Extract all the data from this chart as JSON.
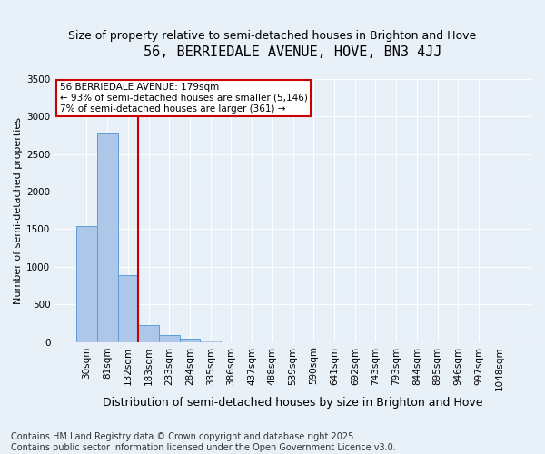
{
  "title": "56, BERRIEDALE AVENUE, HOVE, BN3 4JJ",
  "subtitle": "Size of property relative to semi-detached houses in Brighton and Hove",
  "xlabel": "Distribution of semi-detached houses by size in Brighton and Hove",
  "ylabel": "Number of semi-detached properties",
  "categories": [
    "30sqm",
    "81sqm",
    "132sqm",
    "183sqm",
    "233sqm",
    "284sqm",
    "335sqm",
    "386sqm",
    "437sqm",
    "488sqm",
    "539sqm",
    "590sqm",
    "641sqm",
    "692sqm",
    "743sqm",
    "793sqm",
    "844sqm",
    "895sqm",
    "946sqm",
    "997sqm",
    "1048sqm"
  ],
  "bar_values": [
    1540,
    2780,
    890,
    220,
    95,
    40,
    15,
    0,
    0,
    0,
    0,
    0,
    0,
    0,
    0,
    0,
    0,
    0,
    0,
    0,
    0
  ],
  "bar_color": "#aec6e8",
  "bar_edge_color": "#5a9fd4",
  "vline_x": 2.5,
  "annotation_text": "56 BERRIEDALE AVENUE: 179sqm\n← 93% of semi-detached houses are smaller (5,146)\n7% of semi-detached houses are larger (361) →",
  "vline_color": "#cc0000",
  "annotation_box_color": "#cc0000",
  "ylim": [
    0,
    3500
  ],
  "yticks": [
    0,
    500,
    1000,
    1500,
    2000,
    2500,
    3000,
    3500
  ],
  "bg_color": "#e8f0f8",
  "grid_color": "#ffffff",
  "footer": "Contains HM Land Registry data © Crown copyright and database right 2025.\nContains public sector information licensed under the Open Government Licence v3.0.",
  "title_fontsize": 11,
  "subtitle_fontsize": 9,
  "ylabel_fontsize": 8,
  "xlabel_fontsize": 9,
  "tick_fontsize": 7.5,
  "annotation_fontsize": 7.5,
  "footer_fontsize": 7
}
